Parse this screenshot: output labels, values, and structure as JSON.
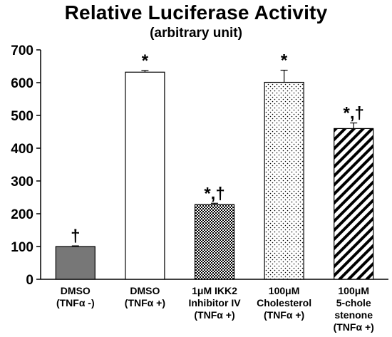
{
  "chart_data": {
    "type": "bar",
    "title": "Relative Luciferase Activity",
    "subtitle": "(arbitrary unit)",
    "xlabel": "",
    "ylabel": "",
    "ylim": [
      0,
      700
    ],
    "yticks": [
      0,
      100,
      200,
      300,
      400,
      500,
      600,
      700
    ],
    "grid": false,
    "categories": [
      [
        "DMSO",
        "(TNFα -)"
      ],
      [
        "DMSO",
        "(TNFα +)"
      ],
      [
        "1μM IKK2",
        "Inhibitor IV",
        "(TNFα +)"
      ],
      [
        "100μM",
        "Cholesterol",
        "(TNFα +)"
      ],
      [
        "100μM",
        "5-chole",
        "stenone",
        "(TNFα +)"
      ]
    ],
    "values": [
      100,
      632,
      228,
      601,
      460
    ],
    "errors": [
      2,
      5,
      4,
      37,
      17
    ],
    "annotations": [
      "†",
      "*",
      "*,†",
      "*",
      "*,†"
    ],
    "fills": [
      "solid-gray",
      "white",
      "checkerboard",
      "dotted",
      "diagonal-stripes"
    ],
    "colors": {
      "gray_fill": "#777777",
      "edge": "#000000"
    }
  }
}
